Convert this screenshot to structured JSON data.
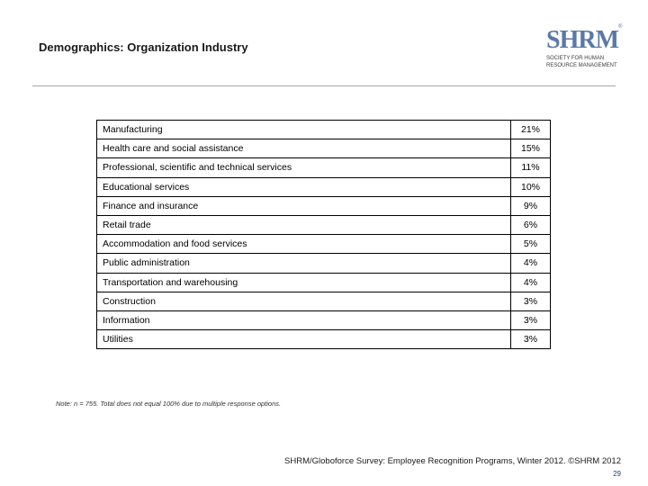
{
  "page": {
    "title": "Demographics: Organization Industry",
    "note": "Note: n = 755. Total does not equal 100% due to multiple response options.",
    "footer": "SHRM/Globoforce Survey: Employee Recognition Programs, Winter 2012. ©SHRM 2012",
    "page_number": "29"
  },
  "logo": {
    "mark": "SHRM",
    "registered": "®",
    "line1": "Society for Human",
    "line2": "Resource Management",
    "color": "#5b78a7"
  },
  "table": {
    "rows": [
      {
        "industry": "Manufacturing",
        "percent": "21%"
      },
      {
        "industry": "Health care and social assistance",
        "percent": "15%"
      },
      {
        "industry": "Professional, scientific and technical services",
        "percent": "11%"
      },
      {
        "industry": "Educational services",
        "percent": "10%"
      },
      {
        "industry": "Finance and insurance",
        "percent": "9%"
      },
      {
        "industry": "Retail trade",
        "percent": "6%"
      },
      {
        "industry": "Accommodation and food services",
        "percent": "5%"
      },
      {
        "industry": "Public administration",
        "percent": "4%"
      },
      {
        "industry": "Transportation and warehousing",
        "percent": "4%"
      },
      {
        "industry": "Construction",
        "percent": "3%"
      },
      {
        "industry": "Information",
        "percent": "3%"
      },
      {
        "industry": "Utilities",
        "percent": "3%"
      }
    ]
  }
}
